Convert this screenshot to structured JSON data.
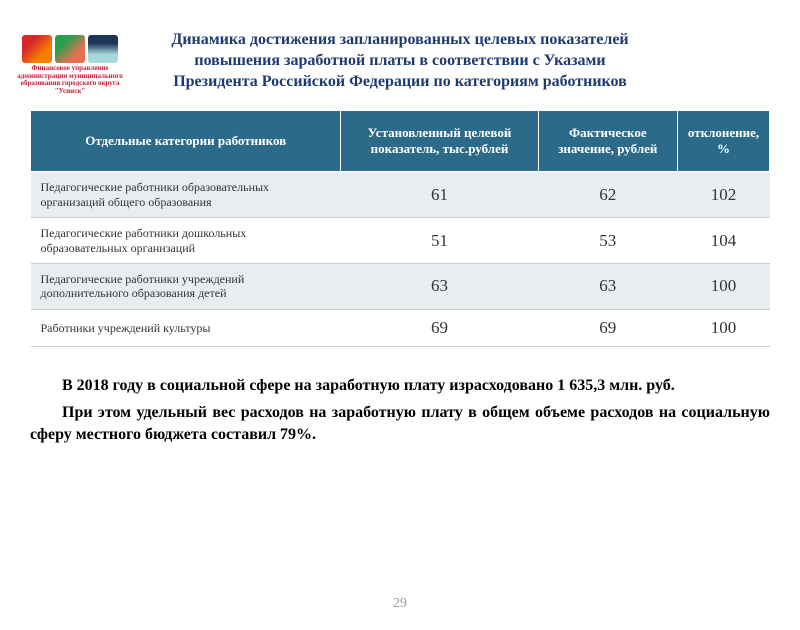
{
  "logo_caption": "Финансовое управление администрации муниципального образования городского округа \"Усинск\"",
  "title": {
    "line1": "Динамика достижения запланированных целевых показателей",
    "line2": "повышения заработной платы в соответствии с Указами",
    "line3": "Президента Российской Федерации по категориям работников"
  },
  "table": {
    "header_bg": "#2b6a88",
    "header_color": "#ffffff",
    "row_odd_bg": "#e8edf0",
    "row_even_bg": "#ffffff",
    "border_color": "#cccccc",
    "columns": [
      "Отдельные категории работников",
      "Установленный целевой показатель, тыс.рублей",
      "Фактическое значение, рублей",
      "отклонение, %"
    ],
    "rows": [
      {
        "cat": "Педагогические работники образовательных организаций общего образования",
        "target": "61",
        "actual": "62",
        "dev": "102"
      },
      {
        "cat": "Педагогические работники дошкольных образовательных организаций",
        "target": "51",
        "actual": "53",
        "dev": "104"
      },
      {
        "cat": "Педагогические работники учреждений дополнительного образования детей",
        "target": "63",
        "actual": "63",
        "dev": "100"
      },
      {
        "cat": "Работники учреждений культуры",
        "target": "69",
        "actual": "69",
        "dev": "100"
      }
    ]
  },
  "paragraphs": {
    "p1": "В 2018 году в социальной сфере на заработную плату израсходовано 1 635,3 млн. руб.",
    "p2": "При этом удельный вес расходов на заработную плату в общем объеме расходов на социальную сферу  местного бюджета составил 79%."
  },
  "page_number": "29"
}
